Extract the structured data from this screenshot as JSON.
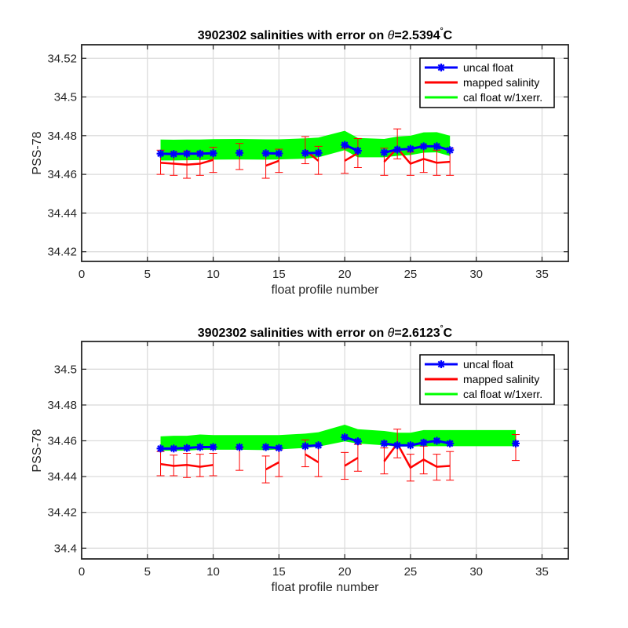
{
  "chart_data": [
    {
      "type": "line",
      "title_prefix": "3902302 salinities with error on ",
      "title_theta": "θ",
      "title_value": "=2.5394",
      "title_degree": "°",
      "title_unit": "C",
      "xlabel": "float profile number",
      "ylabel": "PSS-78",
      "xlim": [
        0,
        37
      ],
      "ylim": [
        34.415,
        34.527
      ],
      "xticks": [
        0,
        5,
        10,
        15,
        20,
        25,
        30,
        35
      ],
      "yticks": [
        34.42,
        34.44,
        34.46,
        34.48,
        34.5,
        34.52
      ],
      "ytick_labels": [
        "34.42",
        "34.44",
        "34.46",
        "34.48",
        "34.5",
        "34.52"
      ],
      "grid": true,
      "legend_position": "top-right",
      "legend": [
        "uncal float",
        "mapped salinity",
        "cal float w/1xerr."
      ],
      "colors": {
        "uncal": "#0000ff",
        "mapped": "#ff0000",
        "cal": "#00ff00"
      },
      "series": [
        {
          "name": "uncal float",
          "segments": [
            {
              "x": [
                6,
                7,
                8,
                9,
                10
              ],
              "y": [
                34.4707,
                34.4705,
                34.4707,
                34.4707,
                34.4709
              ]
            },
            {
              "x": [
                12
              ],
              "y": [
                34.4711
              ]
            },
            {
              "x": [
                14,
                15
              ],
              "y": [
                34.4709,
                34.4708
              ]
            },
            {
              "x": [
                17,
                18
              ],
              "y": [
                34.471,
                34.4711
              ]
            },
            {
              "x": [
                20,
                21
              ],
              "y": [
                34.4752,
                34.4722
              ]
            },
            {
              "x": [
                23,
                24,
                25,
                26,
                27,
                28
              ],
              "y": [
                34.4713,
                34.4728,
                34.4732,
                34.4745,
                34.4745,
                34.4725
              ]
            }
          ]
        },
        {
          "name": "mapped salinity",
          "segments": [
            {
              "x": [
                6,
                7,
                8,
                9,
                10
              ],
              "y": [
                34.466,
                34.4655,
                34.465,
                34.4655,
                34.4675
              ]
            },
            {
              "x": [
                12
              ],
              "y": [
                34.469
              ]
            },
            {
              "x": [
                14,
                15
              ],
              "y": [
                34.4645,
                34.467
              ]
            },
            {
              "x": [
                17,
                18
              ],
              "y": [
                34.4725,
                34.467
              ]
            },
            {
              "x": [
                20,
                21
              ],
              "y": [
                34.467,
                34.471
              ]
            },
            {
              "x": [
                23,
                24,
                25,
                26,
                27,
                28
              ],
              "y": [
                34.4665,
                34.4735,
                34.4655,
                34.468,
                34.466,
                34.4665
              ]
            }
          ],
          "error_bars": {
            "x": [
              6,
              7,
              8,
              9,
              10,
              12,
              14,
              15,
              17,
              18,
              20,
              21,
              23,
              24,
              25,
              26,
              27,
              28
            ],
            "lower": [
              34.46,
              34.4595,
              34.458,
              34.4595,
              34.461,
              34.4625,
              34.458,
              34.461,
              34.4655,
              34.46,
              34.4605,
              34.4635,
              34.4595,
              34.468,
              34.4595,
              34.461,
              34.4595,
              34.4595
            ],
            "upper": [
              34.4725,
              34.4715,
              34.472,
              34.4715,
              34.474,
              34.476,
              34.471,
              34.473,
              34.4795,
              34.4745,
              34.4735,
              34.4785,
              34.4735,
              34.4835,
              34.4715,
              34.475,
              34.4725,
              34.4735
            ]
          }
        },
        {
          "name": "cal float w/1xerr.",
          "x": [
            6,
            7,
            8,
            9,
            10,
            12,
            14,
            15,
            17,
            18,
            20,
            21,
            23,
            24,
            25,
            26,
            27,
            28
          ],
          "upper": [
            34.478,
            34.4779,
            34.478,
            34.478,
            34.4782,
            34.4783,
            34.4781,
            34.4781,
            34.4786,
            34.479,
            34.4825,
            34.4788,
            34.4783,
            34.4795,
            34.48,
            34.4817,
            34.4818,
            34.48
          ],
          "lower": [
            34.4672,
            34.4672,
            34.4673,
            34.4674,
            34.4676,
            34.4677,
            34.4676,
            34.4677,
            34.4681,
            34.4688,
            34.4725,
            34.4688,
            34.4688,
            34.4696,
            34.47,
            34.4712,
            34.4714,
            34.4695
          ]
        }
      ]
    },
    {
      "type": "line",
      "title_prefix": "3902302 salinities with error on ",
      "title_theta": "θ",
      "title_value": "=2.6123",
      "title_degree": "°",
      "title_unit": "C",
      "xlabel": "float profile number",
      "ylabel": "PSS-78",
      "xlim": [
        0,
        37
      ],
      "ylim": [
        34.394,
        34.5155
      ],
      "xticks": [
        0,
        5,
        10,
        15,
        20,
        25,
        30,
        35
      ],
      "yticks": [
        34.4,
        34.42,
        34.44,
        34.46,
        34.48,
        34.5
      ],
      "ytick_labels": [
        "34.4",
        "34.42",
        "34.44",
        "34.46",
        "34.48",
        "34.5"
      ],
      "grid": true,
      "legend_position": "top-right",
      "legend": [
        "uncal float",
        "mapped salinity",
        "cal float w/1xerr."
      ],
      "colors": {
        "uncal": "#0000ff",
        "mapped": "#ff0000",
        "cal": "#00ff00"
      },
      "series": [
        {
          "name": "uncal float",
          "segments": [
            {
              "x": [
                6,
                7,
                8,
                9,
                10
              ],
              "y": [
                34.4557,
                34.4557,
                34.456,
                34.4565,
                34.4565
              ]
            },
            {
              "x": [
                12
              ],
              "y": [
                34.4565
              ]
            },
            {
              "x": [
                14,
                15
              ],
              "y": [
                34.4565,
                34.456
              ]
            },
            {
              "x": [
                17,
                18
              ],
              "y": [
                34.457,
                34.4575
              ]
            },
            {
              "x": [
                20,
                21
              ],
              "y": [
                34.462,
                34.4597
              ]
            },
            {
              "x": [
                23,
                24,
                25,
                26,
                27,
                28
              ],
              "y": [
                34.4585,
                34.4575,
                34.4575,
                34.459,
                34.46,
                34.4585
              ]
            },
            {
              "x": [
                33
              ],
              "y": [
                34.4585
              ]
            }
          ]
        },
        {
          "name": "mapped salinity",
          "segments": [
            {
              "x": [
                6,
                7,
                8,
                9,
                10
              ],
              "y": [
                34.447,
                34.446,
                34.4465,
                34.4455,
                34.4465
              ]
            },
            {
              "x": [
                12
              ],
              "y": [
                34.448
              ]
            },
            {
              "x": [
                14,
                15
              ],
              "y": [
                34.444,
                34.448
              ]
            },
            {
              "x": [
                17,
                18
              ],
              "y": [
                34.4525,
                34.448
              ]
            },
            {
              "x": [
                20,
                21
              ],
              "y": [
                34.446,
                34.4505
              ]
            },
            {
              "x": [
                23,
                24,
                25,
                26,
                27,
                28
              ],
              "y": [
                34.4485,
                34.4585,
                34.445,
                34.4495,
                34.4455,
                34.446
              ]
            },
            {
              "x": [
                33
              ],
              "y": [
                34.4565
              ]
            }
          ],
          "error_bars": {
            "x": [
              6,
              7,
              8,
              9,
              10,
              12,
              14,
              15,
              17,
              18,
              20,
              21,
              23,
              24,
              25,
              26,
              27,
              28,
              33
            ],
            "lower": [
              34.4405,
              34.4405,
              34.4395,
              34.44,
              34.4405,
              34.4435,
              34.4365,
              34.44,
              34.4455,
              34.44,
              34.4385,
              34.443,
              34.4415,
              34.4505,
              34.4375,
              34.4415,
              34.438,
              34.438,
              34.449
            ],
            "upper": [
              34.454,
              34.452,
              34.453,
              34.4525,
              34.453,
              34.456,
              34.4515,
              34.455,
              34.4605,
              34.4575,
              34.4535,
              34.458,
              34.456,
              34.4665,
              34.4525,
              34.457,
              34.4525,
              34.454,
              34.4635
            ]
          }
        },
        {
          "name": "cal float w/1xerr.",
          "x": [
            6,
            7,
            8,
            9,
            10,
            12,
            14,
            15,
            17,
            18,
            20,
            21,
            23,
            24,
            25,
            26,
            27,
            28,
            33
          ],
          "upper": [
            34.4625,
            34.4628,
            34.4628,
            34.4635,
            34.4632,
            34.4632,
            34.4632,
            34.4632,
            34.464,
            34.4648,
            34.469,
            34.4665,
            34.4655,
            34.4645,
            34.4645,
            34.466,
            34.466,
            34.466,
            34.466
          ],
          "lower": [
            34.4545,
            34.4545,
            34.4545,
            34.455,
            34.455,
            34.455,
            34.4548,
            34.4552,
            34.456,
            34.4567,
            34.4597,
            34.4585,
            34.4575,
            34.4568,
            34.4568,
            34.457,
            34.457,
            34.457,
            34.457
          ]
        }
      ]
    }
  ]
}
